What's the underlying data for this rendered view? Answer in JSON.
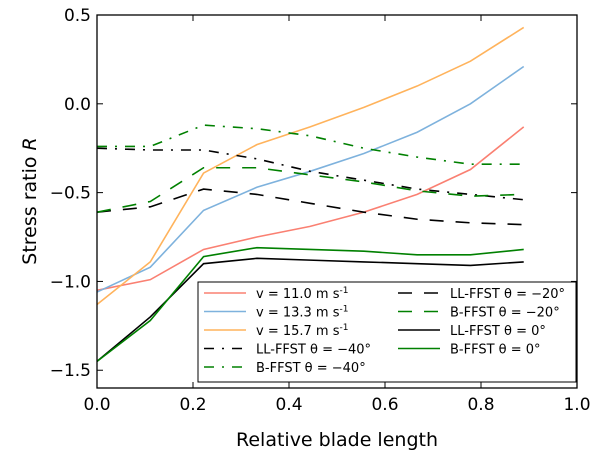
{
  "chart_data": {
    "type": "line",
    "title": "",
    "xlabel": "Relative blade length",
    "ylabel_text": "Stress ratio ",
    "ylabel_symbol": "R",
    "xlim": [
      0.0,
      1.0
    ],
    "ylim": [
      -1.6,
      0.5
    ],
    "xticks": [
      "0.0",
      "0.2",
      "0.4",
      "0.6",
      "0.8",
      "1.0"
    ],
    "xtick_values": [
      0,
      0.2,
      0.4,
      0.6,
      0.8,
      1.0
    ],
    "yticks": [
      "0.5",
      "0.0",
      "−0.5",
      "−1.0",
      "−1.5"
    ],
    "ytick_values": [
      0.5,
      0.0,
      -0.5,
      -1.0,
      -1.5
    ],
    "grid": false,
    "legend_placement": "lower-right",
    "x": [
      0,
      0.111,
      0.222,
      0.333,
      0.444,
      0.556,
      0.667,
      0.778,
      0.889
    ],
    "series": [
      {
        "name": "v = 11.0  m s-1",
        "label_main": "v = 11.0  m s",
        "label_sup": "-1",
        "color": "#fa8072",
        "dash": "",
        "values": [
          -1.05,
          -0.99,
          -0.82,
          -0.75,
          -0.69,
          -0.61,
          -0.51,
          -0.37,
          -0.13
        ]
      },
      {
        "name": "v = 13.3  m s-1",
        "label_main": "v = 13.3  m s",
        "label_sup": "-1",
        "color": "#7eb2dd",
        "dash": "",
        "values": [
          -1.06,
          -0.92,
          -0.6,
          -0.47,
          -0.38,
          -0.28,
          -0.16,
          0.0,
          0.21
        ]
      },
      {
        "name": "v = 15.7  m s-1",
        "label_main": "v = 15.7  m s",
        "label_sup": "-1",
        "color": "#ffb35c",
        "dash": "",
        "values": [
          -1.13,
          -0.89,
          -0.39,
          -0.23,
          -0.13,
          -0.02,
          0.1,
          0.24,
          0.43
        ]
      },
      {
        "name": "LL-FFST θ = −40°",
        "label_main": "LL-FFST θ = −40°",
        "label_sup": "",
        "color": "#000000",
        "dash": "10,8,2,8",
        "values": [
          -0.25,
          -0.26,
          -0.26,
          -0.31,
          -0.38,
          -0.43,
          -0.48,
          -0.51,
          -0.54
        ]
      },
      {
        "name": "B-FFST θ = −40°",
        "label_main": "B-FFST θ = −40°",
        "label_sup": "",
        "color": "#008000",
        "dash": "10,8,2,8",
        "values": [
          -0.24,
          -0.24,
          -0.12,
          -0.14,
          -0.18,
          -0.25,
          -0.3,
          -0.34,
          -0.34
        ]
      },
      {
        "name": "LL-FFST θ = −20°",
        "label_main": "LL-FFST θ = −20°",
        "label_sup": "",
        "color": "#000000",
        "dash": "14,12",
        "values": [
          -0.61,
          -0.58,
          -0.48,
          -0.51,
          -0.56,
          -0.61,
          -0.65,
          -0.67,
          -0.68
        ]
      },
      {
        "name": "B-FFST θ = −20°",
        "label_main": "B-FFST θ = −20°",
        "label_sup": "",
        "color": "#008000",
        "dash": "14,12",
        "values": [
          -0.61,
          -0.55,
          -0.36,
          -0.36,
          -0.4,
          -0.44,
          -0.49,
          -0.52,
          -0.51
        ]
      },
      {
        "name": "LL-FFST θ = 0°",
        "label_main": "LL-FFST θ = 0°",
        "label_sup": "",
        "color": "#000000",
        "dash": "",
        "values": [
          -1.45,
          -1.2,
          -0.9,
          -0.87,
          -0.88,
          -0.89,
          -0.9,
          -0.91,
          -0.89
        ]
      },
      {
        "name": "B-FFST θ = 0°",
        "label_main": "B-FFST θ = 0°",
        "label_sup": "",
        "color": "#008000",
        "dash": "",
        "values": [
          -1.45,
          -1.22,
          -0.86,
          -0.81,
          -0.82,
          -0.83,
          -0.85,
          -0.85,
          -0.82
        ]
      }
    ]
  }
}
